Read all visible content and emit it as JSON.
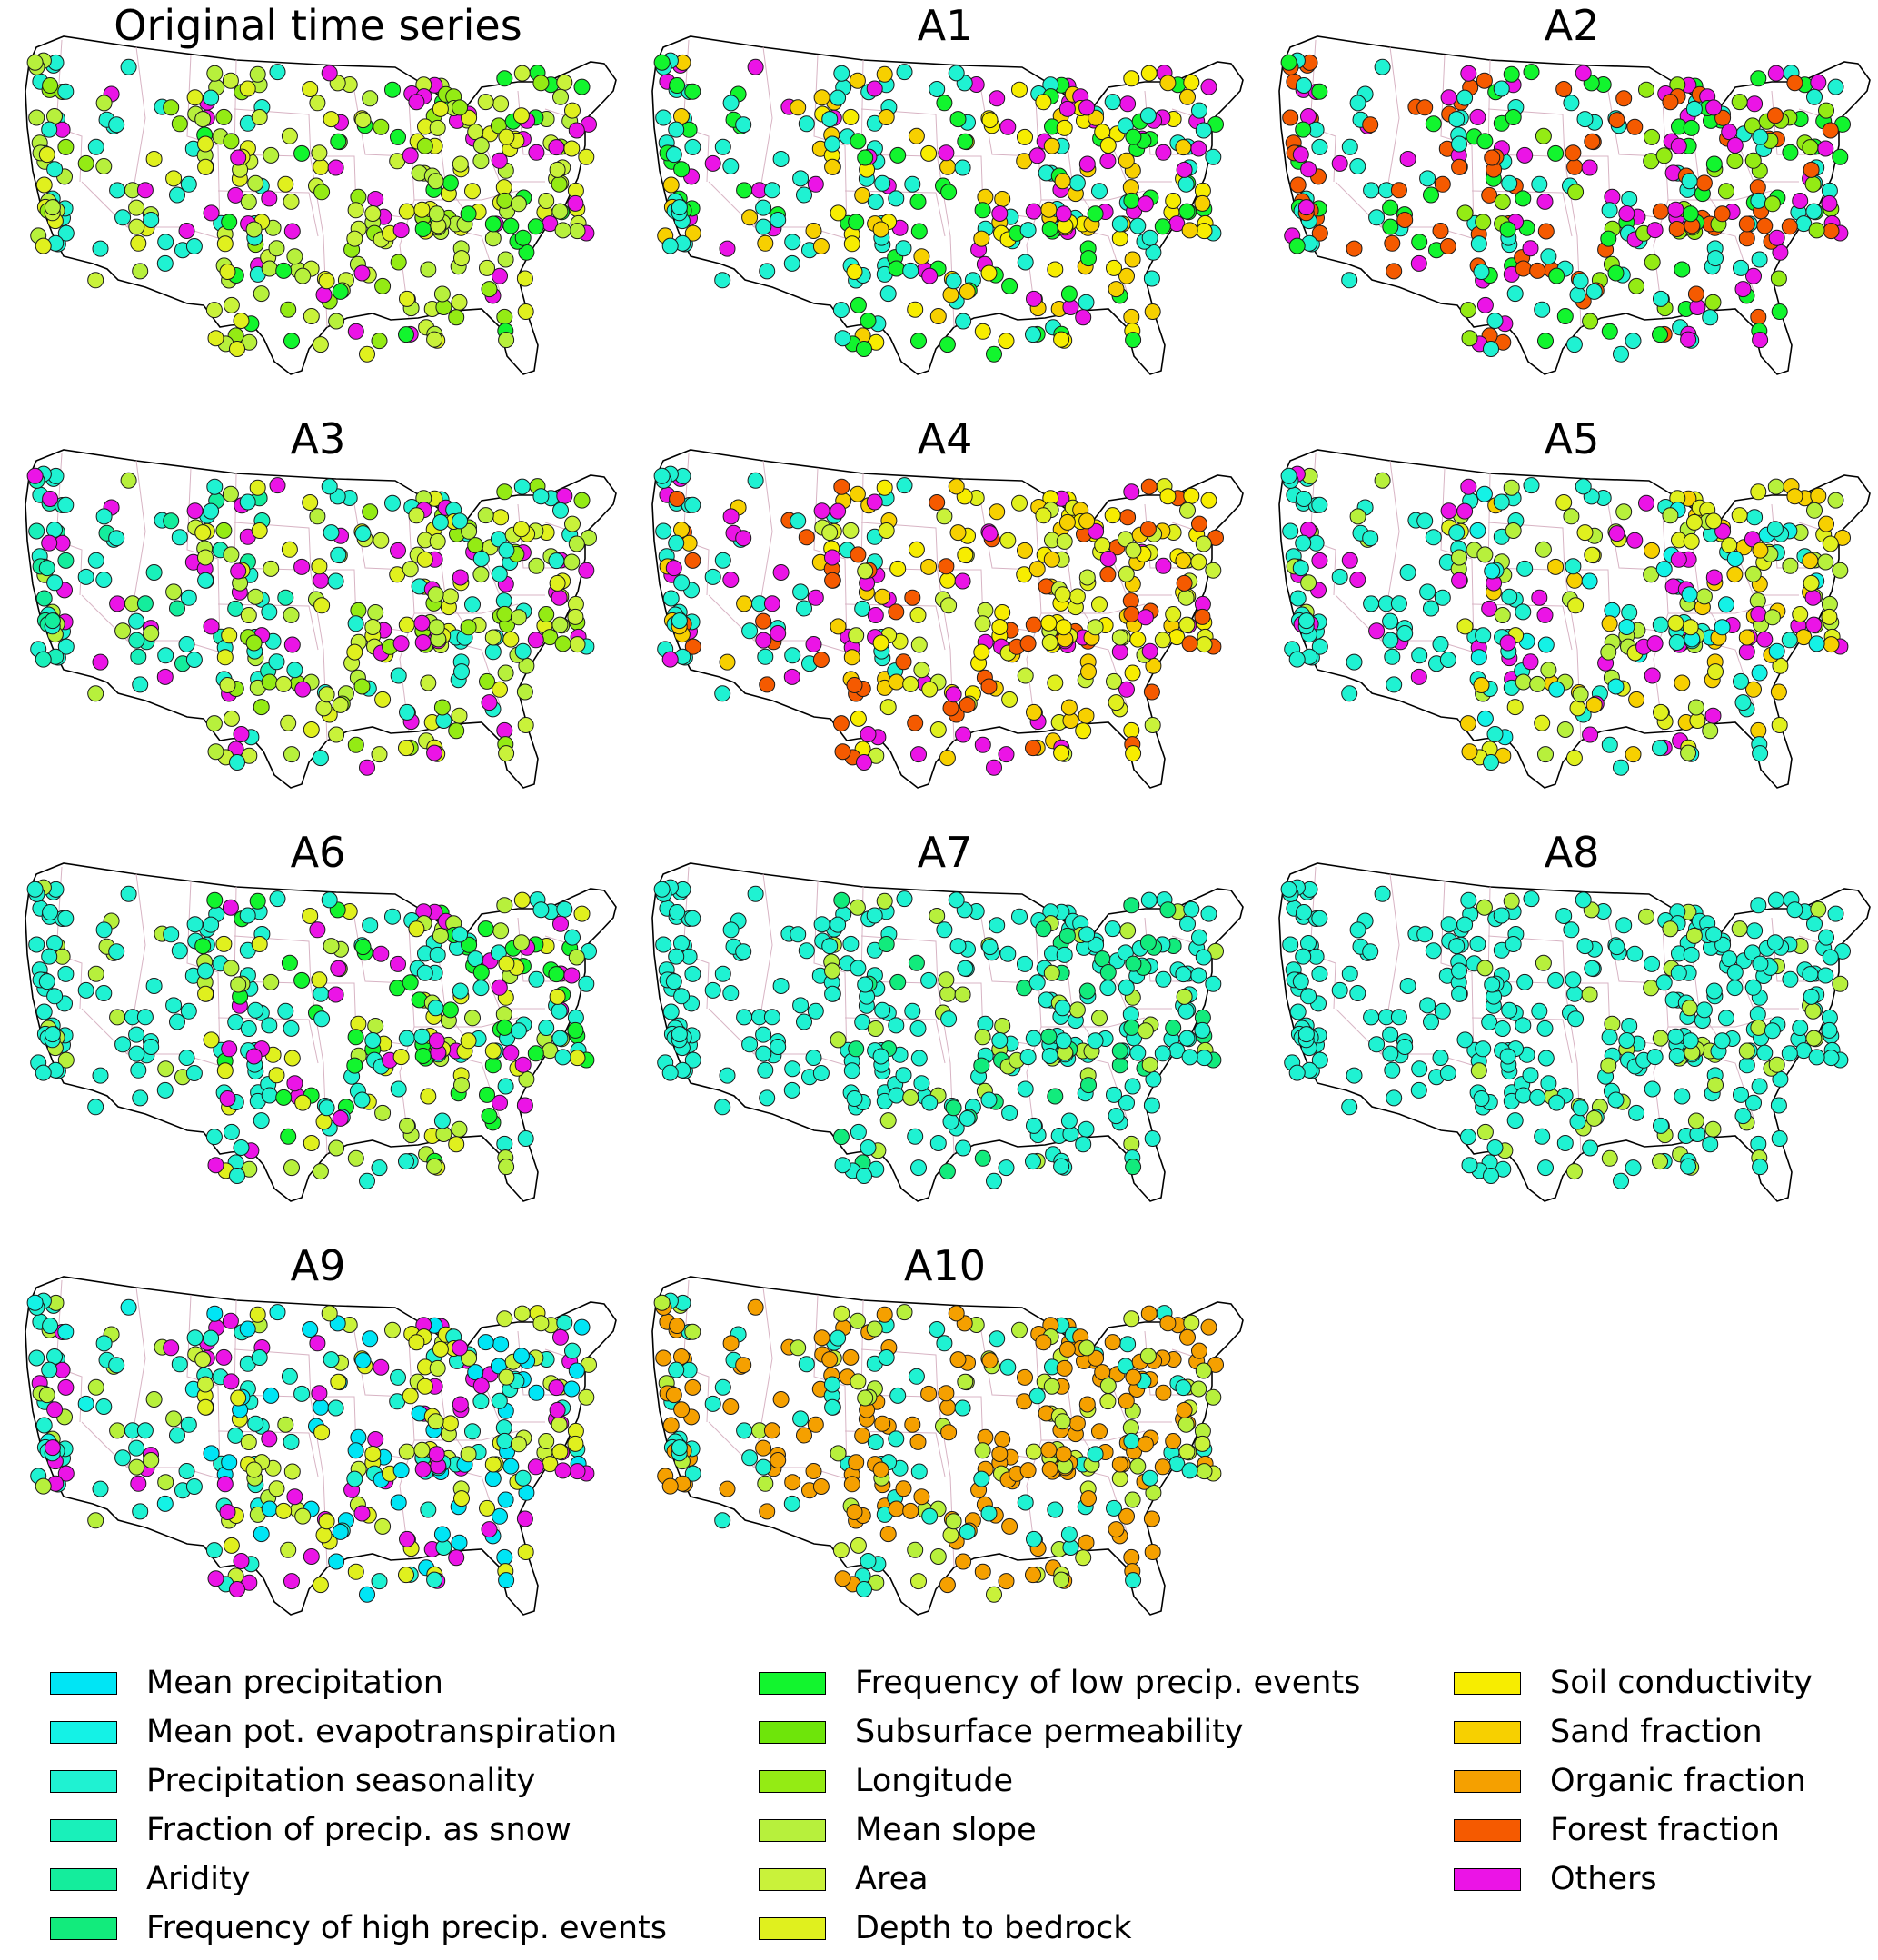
{
  "panels": [
    {
      "title": "Original time series",
      "palette": [
        "c_pseas",
        "c_pseas",
        "c_pseas",
        "c_pseas",
        "c_slope",
        "c_slope",
        "c_area",
        "c_depth",
        "c_long",
        "c_others"
      ],
      "east": [
        "c_slope",
        "c_area",
        "c_depth",
        "c_long",
        "c_lowfreq",
        "c_others"
      ]
    },
    {
      "title": "A1",
      "palette": [
        "c_pseas",
        "c_pseas",
        "c_pseas",
        "c_lowfreq",
        "c_sandf",
        "c_others"
      ],
      "east": [
        "c_soil",
        "c_sandf",
        "c_lowfreq",
        "c_others",
        "c_pseas"
      ]
    },
    {
      "title": "A2",
      "palette": [
        "c_pseas",
        "c_pseas",
        "c_forest",
        "c_forest",
        "c_lowfreq",
        "c_others"
      ],
      "east": [
        "c_forest",
        "c_lowfreq",
        "c_long",
        "c_pseas",
        "c_others"
      ]
    },
    {
      "title": "A3",
      "palette": [
        "c_pseas",
        "c_pseas",
        "c_snow",
        "c_aridity",
        "c_slope",
        "c_others"
      ],
      "east": [
        "c_slope",
        "c_area",
        "c_depth",
        "c_long",
        "c_others",
        "c_pseas"
      ]
    },
    {
      "title": "A4",
      "palette": [
        "c_pseas",
        "c_pseas",
        "c_pseas",
        "c_sandf",
        "c_forest",
        "c_others"
      ],
      "east": [
        "c_sandf",
        "c_area",
        "c_depth",
        "c_soil",
        "c_forest",
        "c_others"
      ]
    },
    {
      "title": "A5",
      "palette": [
        "c_pseas",
        "c_pseas",
        "c_pseas",
        "c_pseas",
        "c_slope",
        "c_others"
      ],
      "east": [
        "c_pseas",
        "c_depth",
        "c_sandf",
        "c_slope",
        "c_others",
        "c_mpet"
      ]
    },
    {
      "title": "A6",
      "palette": [
        "c_pseas",
        "c_pseas",
        "c_pseas",
        "c_pseas",
        "c_pseas",
        "c_slope"
      ],
      "east": [
        "c_pseas",
        "c_pseas",
        "c_slope",
        "c_depth",
        "c_lowfreq",
        "c_others"
      ]
    },
    {
      "title": "A7",
      "palette": [
        "c_pseas",
        "c_pseas",
        "c_pseas",
        "c_pseas",
        "c_pseas",
        "c_pseas"
      ],
      "east": [
        "c_pseas",
        "c_pseas",
        "c_pseas",
        "c_pseas",
        "c_highfreq",
        "c_slope"
      ]
    },
    {
      "title": "A8",
      "palette": [
        "c_pseas",
        "c_pseas",
        "c_pseas",
        "c_pseas",
        "c_pseas",
        "c_pseas"
      ],
      "east": [
        "c_pseas",
        "c_pseas",
        "c_pseas",
        "c_pseas",
        "c_slope"
      ]
    },
    {
      "title": "A9",
      "palette": [
        "c_pseas",
        "c_pseas",
        "c_pseas",
        "c_mpet",
        "c_slope",
        "c_others"
      ],
      "east": [
        "c_depth",
        "c_area",
        "c_mprec",
        "c_others",
        "c_pseas"
      ]
    },
    {
      "title": "A10",
      "palette": [
        "c_organic",
        "c_organic",
        "c_pseas",
        "c_pseas",
        "c_slope",
        "c_organic"
      ],
      "east": [
        "c_organic",
        "c_organic",
        "c_organic",
        "c_area",
        "c_slope",
        "c_pseas"
      ]
    }
  ],
  "colors": {
    "c_mprec": "#00e5f5",
    "c_mpet": "#14f2e6",
    "c_pseas": "#1ff2d2",
    "c_snow": "#19f0ba",
    "c_aridity": "#14ed9c",
    "c_highfreq": "#12eb7c",
    "c_lowfreq": "#12f52e",
    "c_subperm": "#6ee50a",
    "c_long": "#94eb14",
    "c_slope": "#b7f03c",
    "c_area": "#c9f23a",
    "c_depth": "#e0f01e",
    "c_soil": "#f7ed00",
    "c_sandf": "#f7d000",
    "c_organic": "#f5a000",
    "c_forest": "#f55a00",
    "c_others": "#eb14e6"
  },
  "legend": {
    "columns": [
      [
        {
          "label": "Mean precipitation",
          "color": "#00e5f5"
        },
        {
          "label": "Mean pot. evapotranspiration",
          "color": "#14f2e6"
        },
        {
          "label": "Precipitation seasonality",
          "color": "#1ff2d2"
        },
        {
          "label": "Fraction of precip. as snow",
          "color": "#19f0ba"
        },
        {
          "label": "Aridity",
          "color": "#14ed9c"
        },
        {
          "label": "Frequency of high precip. events",
          "color": "#12eb7c"
        }
      ],
      [
        {
          "label": "Frequency of low precip. events",
          "color": "#12f52e"
        },
        {
          "label": "Subsurface permeability",
          "color": "#6ee50a"
        },
        {
          "label": "Longitude",
          "color": "#94eb14"
        },
        {
          "label": "Mean slope",
          "color": "#b7f03c"
        },
        {
          "label": "Area",
          "color": "#c9f23a"
        },
        {
          "label": "Depth to bedrock",
          "color": "#e0f01e"
        }
      ],
      [
        {
          "label": "Soil conductivity",
          "color": "#f7ed00"
        },
        {
          "label": "Sand fraction",
          "color": "#f7d000"
        },
        {
          "label": "Organic fraction",
          "color": "#f5a000"
        },
        {
          "label": "Forest fraction",
          "color": "#f55a00"
        },
        {
          "label": "Others",
          "color": "#eb14e6"
        }
      ]
    ]
  }
}
